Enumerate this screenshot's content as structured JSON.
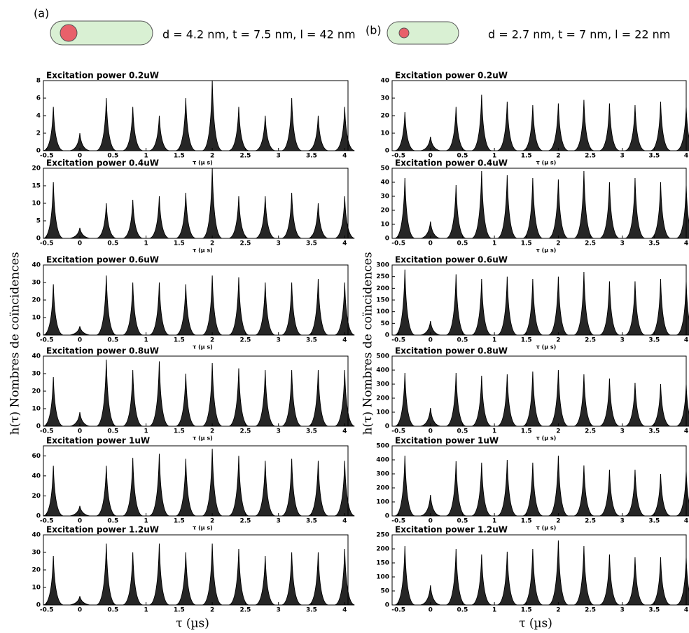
{
  "header": {
    "label_a": "(a)",
    "label_b": "(b)",
    "params_a": "d = 4.2 nm, t = 7.5 nm,  l = 42 nm",
    "params_b": "d = 2.7 nm, t = 7 nm, l = 22 nm"
  },
  "y_label_left": "h(τ) Nombres de coïncidences",
  "y_label_right": "h(τ) Nombres de coïncidences",
  "x_label_left": "τ (µs)",
  "x_label_right": "τ (µs)",
  "chart_data": [
    {
      "type": "bar",
      "title": "Excitation power 0.2uW",
      "x_label": "τ (µ s)",
      "color": "#000000",
      "x": [
        -0.4,
        0,
        0.4,
        0.8,
        1.2,
        1.6,
        2.0,
        2.4,
        2.8,
        3.2,
        3.6,
        4.0
      ],
      "values": [
        5,
        2,
        6,
        5,
        4,
        6,
        8,
        5,
        4,
        6,
        4,
        5
      ],
      "xlim": [
        -0.55,
        4.05
      ],
      "xticks": [
        -0.5,
        0,
        0.5,
        1,
        1.5,
        2,
        2.5,
        3,
        3.5,
        4
      ],
      "ylim": [
        0,
        8
      ],
      "yticks": [
        0,
        2,
        4,
        6,
        8
      ]
    },
    {
      "type": "bar",
      "title": "Excitation power 0.4uW",
      "x_label": "τ (µ s)",
      "color": "#000000",
      "x": [
        -0.4,
        0,
        0.4,
        0.8,
        1.2,
        1.6,
        2.0,
        2.4,
        2.8,
        3.2,
        3.6,
        4.0
      ],
      "values": [
        16,
        3,
        10,
        11,
        12,
        13,
        20,
        12,
        12,
        13,
        10,
        12
      ],
      "xlim": [
        -0.55,
        4.05
      ],
      "xticks": [
        -0.5,
        0,
        0.5,
        1,
        1.5,
        2,
        2.5,
        3,
        3.5,
        4
      ],
      "ylim": [
        0,
        20
      ],
      "yticks": [
        0,
        5,
        10,
        15,
        20
      ]
    },
    {
      "type": "bar",
      "title": "Excitation power 0.6uW",
      "x_label": "τ (µ s)",
      "color": "#000000",
      "x": [
        -0.4,
        0,
        0.4,
        0.8,
        1.2,
        1.6,
        2.0,
        2.4,
        2.8,
        3.2,
        3.6,
        4.0
      ],
      "values": [
        29,
        5,
        34,
        30,
        30,
        29,
        34,
        33,
        30,
        30,
        32,
        30
      ],
      "xlim": [
        -0.55,
        4.05
      ],
      "xticks": [
        -0.5,
        0,
        0.5,
        1,
        1.5,
        2,
        2.5,
        3,
        3.5,
        4
      ],
      "ylim": [
        0,
        40
      ],
      "yticks": [
        0,
        10,
        20,
        30,
        40
      ]
    },
    {
      "type": "bar",
      "title": "Excitation power 0.8uW",
      "x_label": "τ (µ s)",
      "color": "#000000",
      "x": [
        -0.4,
        0,
        0.4,
        0.8,
        1.2,
        1.6,
        2.0,
        2.4,
        2.8,
        3.2,
        3.6,
        4.0
      ],
      "values": [
        28,
        8,
        38,
        32,
        37,
        30,
        36,
        33,
        32,
        32,
        32,
        32
      ],
      "xlim": [
        -0.55,
        4.05
      ],
      "xticks": [
        -0.5,
        0,
        0.5,
        1,
        1.5,
        2,
        2.5,
        3,
        3.5,
        4
      ],
      "ylim": [
        0,
        40
      ],
      "yticks": [
        0,
        10,
        20,
        30,
        40
      ]
    },
    {
      "type": "bar",
      "title": "Excitation power 1uW",
      "x_label": "τ (µ s)",
      "color": "#000000",
      "x": [
        -0.4,
        0,
        0.4,
        0.8,
        1.2,
        1.6,
        2.0,
        2.4,
        2.8,
        3.2,
        3.6,
        4.0
      ],
      "values": [
        50,
        10,
        50,
        58,
        62,
        57,
        67,
        60,
        55,
        57,
        55,
        55
      ],
      "xlim": [
        -0.55,
        4.05
      ],
      "xticks": [
        -0.5,
        0,
        0.5,
        1,
        1.5,
        2,
        2.5,
        3,
        3.5,
        4
      ],
      "ylim": [
        0,
        70
      ],
      "yticks": [
        0,
        20,
        40,
        60
      ]
    },
    {
      "type": "bar",
      "title": "Excitation power 1.2uW",
      "color": "#000000",
      "x": [
        -0.4,
        0,
        0.4,
        0.8,
        1.2,
        1.6,
        2.0,
        2.4,
        2.8,
        3.2,
        3.6,
        4.0
      ],
      "values": [
        28,
        5,
        35,
        30,
        35,
        30,
        35,
        32,
        28,
        30,
        30,
        32
      ],
      "xlim": [
        -0.55,
        4.05
      ],
      "xticks": [
        -0.5,
        0,
        0.5,
        1,
        1.5,
        2,
        2.5,
        3,
        3.5,
        4
      ],
      "ylim": [
        0,
        40
      ],
      "yticks": [
        0,
        10,
        20,
        30,
        40
      ]
    },
    {
      "type": "bar",
      "title": "Excitation power 0.2uW",
      "x_label": "τ (µ s)",
      "color": "#000000",
      "x": [
        -0.4,
        0,
        0.4,
        0.8,
        1.2,
        1.6,
        2.0,
        2.4,
        2.8,
        3.2,
        3.6,
        4.0
      ],
      "values": [
        22,
        8,
        25,
        32,
        28,
        26,
        27,
        29,
        27,
        26,
        28,
        25
      ],
      "xlim": [
        -0.6,
        4.0
      ],
      "xticks": [
        -0.5,
        0,
        0.5,
        1,
        1.5,
        2,
        2.5,
        3,
        3.5,
        4
      ],
      "ylim": [
        0,
        40
      ],
      "yticks": [
        0,
        10,
        20,
        30,
        40
      ]
    },
    {
      "type": "bar",
      "title": "Excitation power 0.4uW",
      "x_label": "τ (µ s)",
      "color": "#000000",
      "x": [
        -0.4,
        0,
        0.4,
        0.8,
        1.2,
        1.6,
        2.0,
        2.4,
        2.8,
        3.2,
        3.6,
        4.0
      ],
      "values": [
        43,
        12,
        38,
        48,
        45,
        43,
        42,
        48,
        40,
        43,
        40,
        38
      ],
      "xlim": [
        -0.6,
        4.0
      ],
      "xticks": [
        -0.5,
        0,
        0.5,
        1,
        1.5,
        2,
        2.5,
        3,
        3.5,
        4
      ],
      "ylim": [
        0,
        50
      ],
      "yticks": [
        0,
        10,
        20,
        30,
        40,
        50
      ]
    },
    {
      "type": "bar",
      "title": "Excitation power 0.6uW",
      "x_label": "τ (µ s)",
      "color": "#000000",
      "x": [
        -0.4,
        0,
        0.4,
        0.8,
        1.2,
        1.6,
        2.0,
        2.4,
        2.8,
        3.2,
        3.6,
        4.0
      ],
      "values": [
        280,
        60,
        260,
        240,
        250,
        240,
        250,
        270,
        230,
        230,
        240,
        230
      ],
      "xlim": [
        -0.6,
        4.0
      ],
      "xticks": [
        -0.5,
        0,
        0.5,
        1,
        1.5,
        2,
        2.5,
        3,
        3.5,
        4
      ],
      "ylim": [
        0,
        300
      ],
      "yticks": [
        0,
        50,
        100,
        150,
        200,
        250,
        300
      ]
    },
    {
      "type": "bar",
      "title": "Excitation power 0.8uW",
      "x_label": "τ (µ s)",
      "color": "#000000",
      "x": [
        -0.4,
        0,
        0.4,
        0.8,
        1.2,
        1.6,
        2.0,
        2.4,
        2.8,
        3.2,
        3.6,
        4.0
      ],
      "values": [
        380,
        130,
        380,
        360,
        370,
        390,
        400,
        370,
        340,
        310,
        300,
        300
      ],
      "xlim": [
        -0.6,
        4.0
      ],
      "xticks": [
        -0.5,
        0,
        0.5,
        1,
        1.5,
        2,
        2.5,
        3,
        3.5,
        4
      ],
      "ylim": [
        0,
        500
      ],
      "yticks": [
        0,
        100,
        200,
        300,
        400,
        500
      ]
    },
    {
      "type": "bar",
      "title": "Excitation power 1uW",
      "x_label": "τ (µ s)",
      "color": "#000000",
      "x": [
        -0.4,
        0,
        0.4,
        0.8,
        1.2,
        1.6,
        2.0,
        2.4,
        2.8,
        3.2,
        3.6,
        4.0
      ],
      "values": [
        430,
        150,
        390,
        380,
        400,
        380,
        430,
        360,
        330,
        330,
        300,
        320
      ],
      "xlim": [
        -0.6,
        4.0
      ],
      "xticks": [
        -0.5,
        0,
        0.5,
        1,
        1.5,
        2,
        2.5,
        3,
        3.5,
        4
      ],
      "ylim": [
        0,
        500
      ],
      "yticks": [
        0,
        100,
        200,
        300,
        400,
        500
      ]
    },
    {
      "type": "bar",
      "title": "Excitation power 1.2uW",
      "color": "#000000",
      "x": [
        -0.4,
        0,
        0.4,
        0.8,
        1.2,
        1.6,
        2.0,
        2.4,
        2.8,
        3.2,
        3.6,
        4.0
      ],
      "values": [
        210,
        70,
        200,
        180,
        190,
        200,
        230,
        210,
        180,
        170,
        170,
        170
      ],
      "xlim": [
        -0.6,
        4.0
      ],
      "xticks": [
        -0.5,
        0,
        0.5,
        1,
        1.5,
        2,
        2.5,
        3,
        3.5,
        4
      ],
      "ylim": [
        0,
        250
      ],
      "yticks": [
        0,
        50,
        100,
        150,
        200,
        250
      ]
    }
  ]
}
